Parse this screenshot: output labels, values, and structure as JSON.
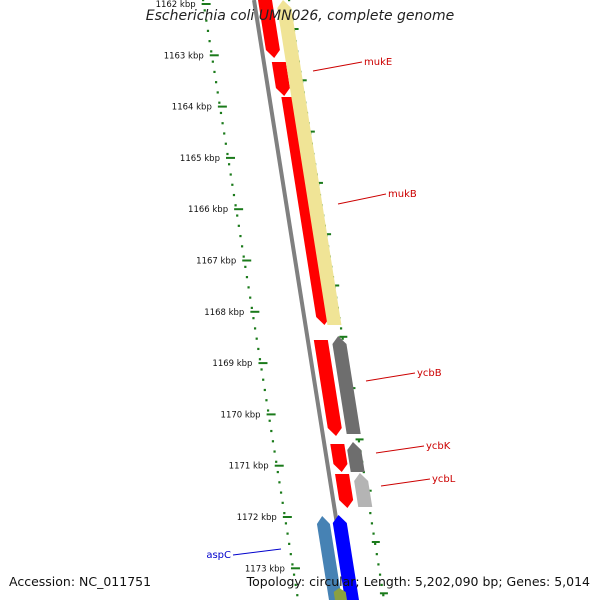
{
  "title": "Escherichia coli UMN026, complete genome",
  "footer": {
    "accession": "Accession: NC_011751",
    "summary": "Topology: circular; Length: 5,202,090 bp; Genes: 5,014"
  },
  "scale": {
    "color": "#1a7a1a",
    "ticks": [
      "1162 kbp",
      "1163 kbp",
      "1164 kbp",
      "1165 kbp",
      "1166 kbp",
      "1167 kbp",
      "1168 kbp",
      "1169 kbp",
      "1170 kbp",
      "1171 kbp",
      "1172 kbp",
      "1173 kbp"
    ]
  },
  "colors": {
    "backbone": "#808080",
    "gene_red": "#ff0000",
    "gene_gray": "#6e6e6e",
    "gene_lightgray": "#b4b4b4",
    "gene_yellow": "#f0e496",
    "gene_blue": "#0000ff",
    "gene_steelblue": "#4682b4",
    "gene_olive": "#8aa040",
    "label_red": "#cc0000",
    "label_blue": "#0000cc"
  },
  "gene_labels": [
    {
      "name": "mukE",
      "color": "red"
    },
    {
      "name": "mukB",
      "color": "red"
    },
    {
      "name": "ycbB",
      "color": "red"
    },
    {
      "name": "ycbK",
      "color": "red"
    },
    {
      "name": "ycbL",
      "color": "red"
    },
    {
      "name": "aspC",
      "color": "blue"
    }
  ]
}
